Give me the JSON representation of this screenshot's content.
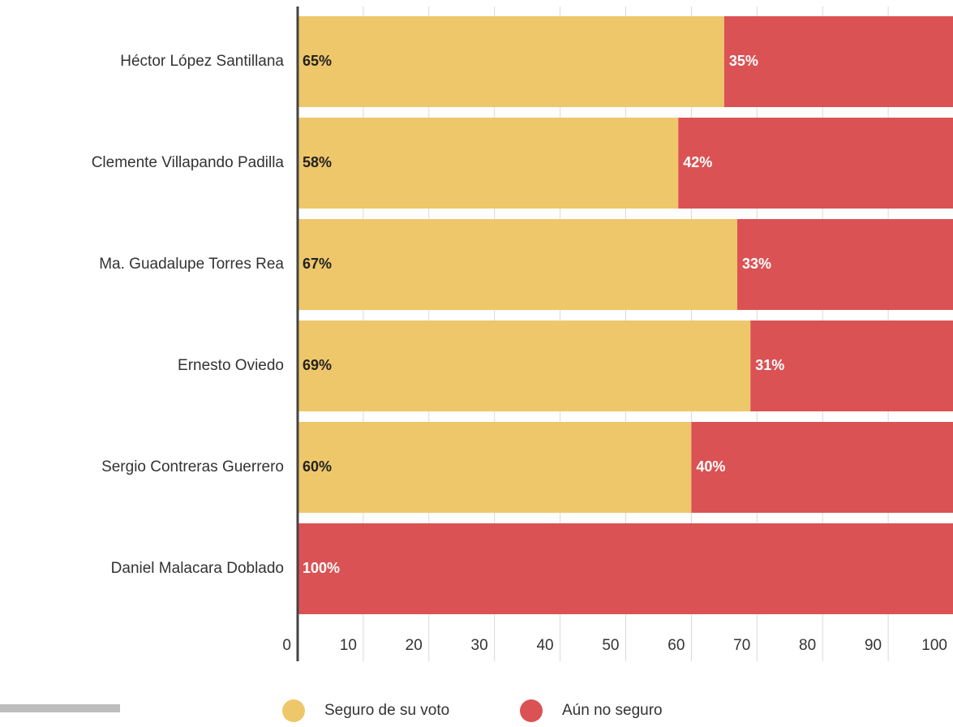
{
  "chart_data": {
    "type": "stacked_barh",
    "categories": [
      "Héctor López Santillana",
      "Clemente Villapando Padilla",
      "Ma. Guadalupe Torres Rea",
      "Ernesto Oviedo",
      "Sergio Contreras Guerrero",
      "Daniel Malacara Doblado"
    ],
    "series": [
      {
        "name": "Seguro de su voto",
        "color": "#eec76a",
        "values": [
          65,
          58,
          67,
          69,
          60,
          0
        ],
        "value_labels": [
          "65%",
          "58%",
          "67%",
          "69%",
          "60%",
          null
        ]
      },
      {
        "name": "Aún no seguro",
        "color": "#db5254",
        "values": [
          35,
          42,
          33,
          31,
          40,
          100
        ],
        "value_labels": [
          "35%",
          "42%",
          "33%",
          "31%",
          "40%",
          "100%"
        ]
      }
    ],
    "xlim": [
      0,
      100
    ],
    "xticks": [
      0,
      10,
      20,
      30,
      40,
      50,
      60,
      70,
      80,
      90,
      100
    ],
    "grid": true
  }
}
